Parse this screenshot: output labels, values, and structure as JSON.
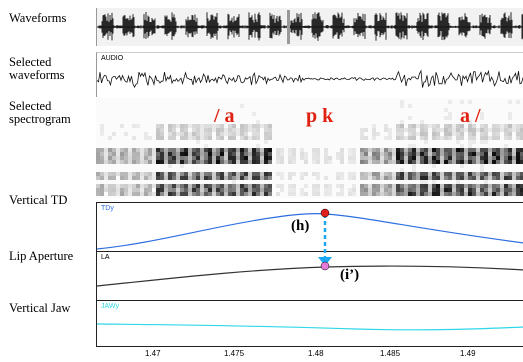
{
  "rows": {
    "waveforms": "Waveforms",
    "selected_waveforms": "Selected\nwaveforms",
    "selected_spectrogram": "Selected\nspectrogram",
    "vertical_td": "Vertical TD",
    "lip_aperture": "Lip Aperture",
    "vertical_jaw": "Vertical Jaw"
  },
  "channels": {
    "audio": "AUDIO",
    "tdy": "TDy",
    "la": "LA",
    "jawy": "JAWy"
  },
  "phonemes": {
    "left": "/ a",
    "mid": "p k",
    "right": "a /"
  },
  "annotations": {
    "h": "(h)",
    "i": "(i’)"
  },
  "time_axis": [
    "1.47",
    "1.475",
    "1.48",
    "1.485",
    "1.49"
  ],
  "colors": {
    "tdy_trace": "#2f6fe0",
    "la_trace": "#333333",
    "jaw_trace": "#2fd7e8",
    "phoneme": "#e02010",
    "arrow": "#1ca7f2",
    "td_marker": "#e0201a",
    "la_marker": "#e57bd8"
  }
}
